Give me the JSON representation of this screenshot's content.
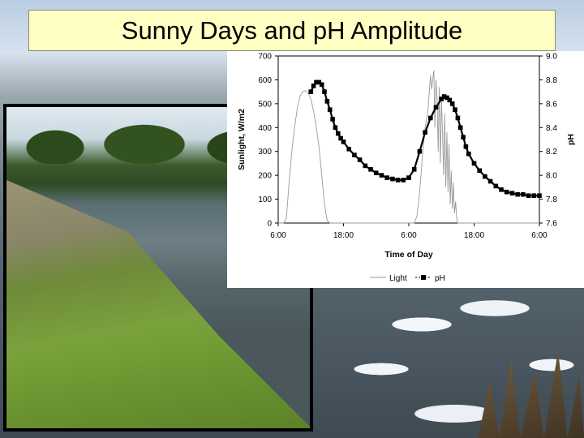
{
  "slide": {
    "title": "Sunny Days and pH Amplitude"
  },
  "chart_data": {
    "type": "line",
    "xlabel": "Time of Day",
    "ylabel_left": "Sunlight, W/m2",
    "ylabel_right": "pH",
    "x_ticks": [
      "6:00",
      "18:00",
      "6:00",
      "18:00",
      "6:00"
    ],
    "x_tick_hours": [
      0,
      12,
      24,
      36,
      48
    ],
    "xlim_hours": [
      0,
      48
    ],
    "ylim_left": [
      0,
      700
    ],
    "y_ticks_left": [
      "0",
      "100",
      "200",
      "300",
      "400",
      "500",
      "600",
      "700"
    ],
    "ylim_right": [
      7.6,
      9.0
    ],
    "y_ticks_right": [
      "7.6",
      "7.8",
      "8.0",
      "8.2",
      "8.4",
      "8.6",
      "8.8",
      "9.0"
    ],
    "legend": {
      "placement": "bottom-center",
      "items": [
        "Light",
        "pH"
      ]
    },
    "grid": false,
    "series": [
      {
        "name": "Light",
        "axis": "left",
        "style": "thin gray line",
        "x": [
          0,
          1,
          1.5,
          2,
          2.5,
          3,
          3.5,
          4,
          4.5,
          5,
          5.5,
          6,
          6.5,
          7,
          7.5,
          8,
          8.5,
          9,
          9.5,
          10,
          10.5,
          11,
          24,
          25,
          25.5,
          26,
          26.5,
          27,
          27.5,
          28,
          28.2,
          28.4,
          28.6,
          28.8,
          29,
          29.2,
          29.4,
          29.6,
          29.8,
          30,
          30.2,
          30.4,
          30.6,
          30.8,
          31,
          31.2,
          31.4,
          31.6,
          31.8,
          32,
          32.2,
          32.4,
          32.6,
          32.8,
          33,
          34,
          48
        ],
        "y": [
          0,
          0,
          20,
          170,
          300,
          400,
          480,
          530,
          550,
          555,
          545,
          520,
          470,
          400,
          320,
          200,
          80,
          10,
          0,
          0,
          0,
          0,
          0,
          0,
          30,
          130,
          280,
          400,
          470,
          620,
          560,
          600,
          640,
          400,
          600,
          520,
          300,
          570,
          250,
          510,
          380,
          200,
          460,
          150,
          380,
          130,
          330,
          80,
          220,
          60,
          170,
          40,
          90,
          20,
          0,
          0,
          0
        ]
      },
      {
        "name": "pH",
        "axis": "right",
        "style": "black square markers",
        "x": [
          6,
          6.5,
          7,
          7.5,
          8,
          8.5,
          9,
          9.5,
          10,
          10.5,
          11,
          11.5,
          12,
          13,
          14,
          15,
          16,
          17,
          18,
          19,
          20,
          21,
          22,
          23,
          24,
          25,
          26,
          27,
          28,
          29,
          30,
          30.5,
          31,
          31.5,
          32,
          32.5,
          33,
          33.5,
          34,
          34.5,
          35,
          36,
          37,
          38,
          39,
          40,
          41,
          42,
          43,
          44,
          45,
          46,
          47,
          48
        ],
        "y": [
          8.7,
          8.75,
          8.78,
          8.78,
          8.76,
          8.7,
          8.62,
          8.55,
          8.47,
          8.4,
          8.35,
          8.31,
          8.28,
          8.22,
          8.17,
          8.13,
          8.08,
          8.05,
          8.02,
          8.0,
          7.98,
          7.97,
          7.96,
          7.96,
          7.98,
          8.05,
          8.2,
          8.36,
          8.48,
          8.57,
          8.64,
          8.66,
          8.65,
          8.63,
          8.6,
          8.55,
          8.48,
          8.4,
          8.32,
          8.24,
          8.18,
          8.1,
          8.04,
          7.99,
          7.95,
          7.91,
          7.88,
          7.86,
          7.85,
          7.84,
          7.84,
          7.83,
          7.83,
          7.83
        ]
      }
    ]
  }
}
